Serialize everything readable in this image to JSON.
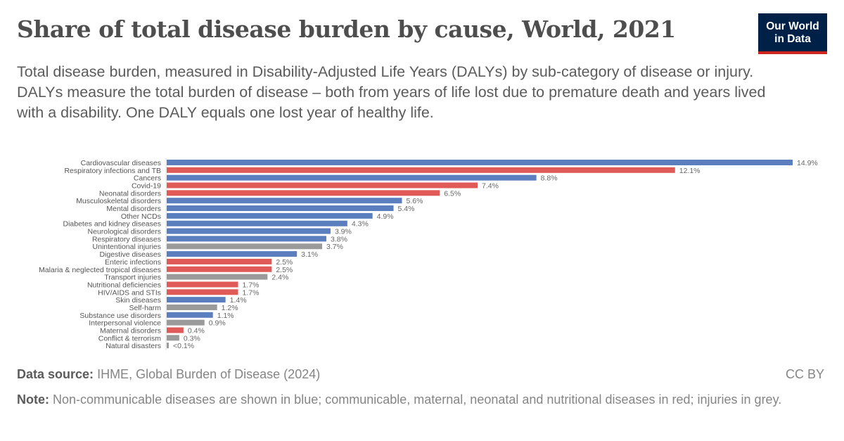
{
  "header": {
    "title": "Share of total disease burden by cause, World, 2021",
    "subtitle_1": "Total disease burden, measured in Disability-Adjusted Life Years (DALYs) by sub-category of disease or injury.",
    "subtitle_2": "DALYs measure the total burden of disease – both from years of life lost due to premature death and years lived with a disability. One DALY equals one lost year of healthy life.",
    "logo_line1": "Our World",
    "logo_line2": "in Data"
  },
  "footer": {
    "source_label": "Data source:",
    "source": "IHME, Global Burden of Disease (2024)",
    "license": "CC BY",
    "note_label": "Note:",
    "note": "Non-communicable diseases are shown in blue; communicable, maternal, neonatal and nutritional diseases in red; injuries in grey."
  },
  "colors": {
    "ncd": "#5b7fbe",
    "communicable": "#e05a57",
    "injuries": "#9a9a9a",
    "brand": "#002147",
    "brand_accent": "#ce261e"
  },
  "chart_data": {
    "type": "bar",
    "orientation": "horizontal",
    "unit": "%",
    "xlim": [
      0,
      14.9
    ],
    "grid": false,
    "categories": [
      "Cardiovascular diseases",
      "Respiratory infections and TB",
      "Cancers",
      "Covid-19",
      "Neonatal disorders",
      "Musculoskeletal disorders",
      "Mental disorders",
      "Other NCDs",
      "Diabetes and kidney diseases",
      "Neurological disorders",
      "Respiratory diseases",
      "Unintentional injuries",
      "Digestive diseases",
      "Enteric infections",
      "Malaria & neglected tropical diseases",
      "Transport injuries",
      "Nutritional deficiencies",
      "HIV/AIDS and STIs",
      "Skin diseases",
      "Self-harm",
      "Substance use disorders",
      "Interpersonal violence",
      "Maternal disorders",
      "Conflict & terrorism",
      "Natural disasters"
    ],
    "values": [
      14.9,
      12.1,
      8.8,
      7.4,
      6.5,
      5.6,
      5.4,
      4.9,
      4.3,
      3.9,
      3.8,
      3.7,
      3.1,
      2.5,
      2.5,
      2.4,
      1.7,
      1.7,
      1.4,
      1.2,
      1.1,
      0.9,
      0.4,
      0.3,
      0.05
    ],
    "labels": [
      "14.9%",
      "12.1%",
      "8.8%",
      "7.4%",
      "6.5%",
      "5.6%",
      "5.4%",
      "4.9%",
      "4.3%",
      "3.9%",
      "3.8%",
      "3.7%",
      "3.1%",
      "2.5%",
      "2.5%",
      "2.4%",
      "1.7%",
      "1.7%",
      "1.4%",
      "1.2%",
      "1.1%",
      "0.9%",
      "0.4%",
      "0.3%",
      "<0.1%"
    ],
    "groups": [
      "ncd",
      "communicable",
      "ncd",
      "communicable",
      "communicable",
      "ncd",
      "ncd",
      "ncd",
      "ncd",
      "ncd",
      "ncd",
      "injuries",
      "ncd",
      "communicable",
      "communicable",
      "injuries",
      "communicable",
      "communicable",
      "ncd",
      "injuries",
      "ncd",
      "injuries",
      "communicable",
      "injuries",
      "injuries"
    ]
  }
}
